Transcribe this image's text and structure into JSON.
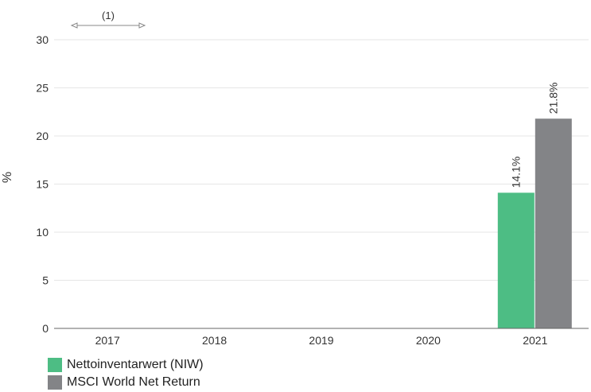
{
  "chart_data": {
    "type": "bar",
    "categories": [
      "2017",
      "2018",
      "2019",
      "2020",
      "2021"
    ],
    "series": [
      {
        "name": "Nettoinventarwert (NIW)",
        "color": "#4dbd84",
        "values": [
          null,
          null,
          null,
          null,
          14.1
        ],
        "labels": [
          "",
          "",
          "",
          "",
          "14.1%"
        ]
      },
      {
        "name": "MSCI World Net Return",
        "color": "#838487",
        "values": [
          null,
          null,
          null,
          null,
          21.8
        ],
        "labels": [
          "",
          "",
          "",
          "",
          "21.8%"
        ]
      }
    ],
    "ylabel": "%",
    "ylim": [
      0,
      30
    ],
    "yticks": [
      "0",
      "5",
      "10",
      "15",
      "20",
      "25",
      "30"
    ],
    "annotation": "(1)",
    "grid": true,
    "legend_position": "bottom-left"
  }
}
